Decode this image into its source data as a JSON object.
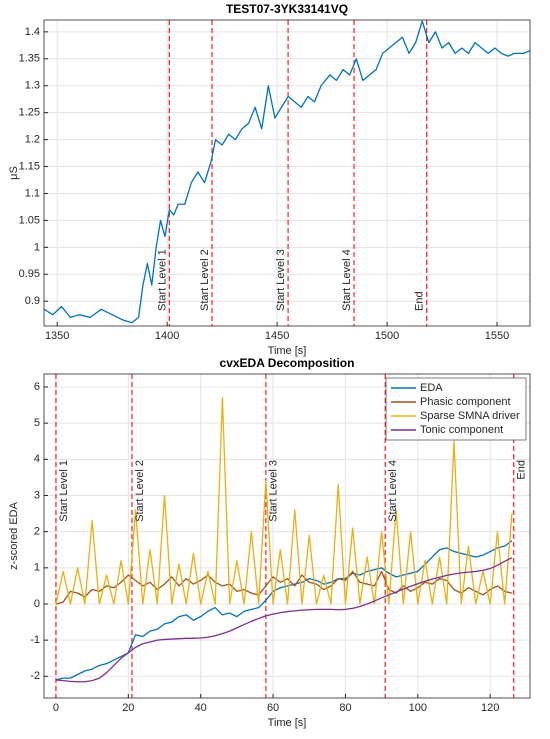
{
  "chart_data": [
    {
      "type": "line",
      "title": "TEST07-3YK33141VQ",
      "xlabel": "Time [s]",
      "ylabel": "μS",
      "xlim": [
        1344,
        1565
      ],
      "xticks": [
        1350,
        1400,
        1450,
        1500,
        1550
      ],
      "ylim": [
        0.854,
        1.422
      ],
      "yticks": [
        0.9,
        0.95,
        1,
        1.05,
        1.1,
        1.15,
        1.2,
        1.25,
        1.3,
        1.35,
        1.4
      ],
      "grid": true,
      "x": [
        1344,
        1348,
        1352,
        1356,
        1360,
        1365,
        1370,
        1375,
        1380,
        1384,
        1387,
        1389,
        1391,
        1393,
        1395,
        1397,
        1399,
        1401,
        1403,
        1405,
        1408,
        1411,
        1414,
        1417,
        1420,
        1422,
        1425,
        1428,
        1431,
        1434,
        1437,
        1440,
        1443,
        1446,
        1449,
        1452,
        1455,
        1458,
        1461,
        1464,
        1467,
        1470,
        1474,
        1477,
        1480,
        1483,
        1486,
        1489,
        1492,
        1495,
        1498,
        1501,
        1504,
        1507,
        1510,
        1513,
        1516,
        1519,
        1522,
        1525,
        1528,
        1531,
        1534,
        1537,
        1540,
        1543,
        1546,
        1549,
        1552,
        1555,
        1558,
        1562,
        1565
      ],
      "series": [
        {
          "color": "#0072bd",
          "values": [
            0.885,
            0.875,
            0.89,
            0.87,
            0.875,
            0.87,
            0.885,
            0.875,
            0.865,
            0.86,
            0.87,
            0.93,
            0.97,
            0.93,
            1.0,
            1.05,
            1.02,
            1.07,
            1.06,
            1.08,
            1.08,
            1.12,
            1.14,
            1.12,
            1.16,
            1.2,
            1.19,
            1.21,
            1.2,
            1.22,
            1.23,
            1.26,
            1.22,
            1.3,
            1.24,
            1.26,
            1.28,
            1.27,
            1.26,
            1.28,
            1.27,
            1.3,
            1.32,
            1.31,
            1.33,
            1.32,
            1.35,
            1.31,
            1.32,
            1.33,
            1.36,
            1.37,
            1.38,
            1.39,
            1.36,
            1.38,
            1.42,
            1.38,
            1.4,
            1.37,
            1.38,
            1.36,
            1.37,
            1.36,
            1.38,
            1.37,
            1.36,
            1.37,
            1.36,
            1.355,
            1.36,
            1.36,
            1.365
          ]
        }
      ],
      "vlines": [
        {
          "x": 1401,
          "label": "Start Level 1"
        },
        {
          "x": 1420.4,
          "label": "Start Level 2"
        },
        {
          "x": 1455,
          "label": "Start Level 3"
        },
        {
          "x": 1485,
          "label": "Start Level 4"
        },
        {
          "x": 1518,
          "label": "End"
        }
      ]
    },
    {
      "type": "line",
      "title": "cvxEDA Decomposition",
      "xlabel": "Time [s]",
      "ylabel": "z-scored EDA",
      "xlim": [
        -3.3,
        131
      ],
      "xticks": [
        0,
        20,
        40,
        60,
        80,
        100,
        120
      ],
      "ylim": [
        -2.6,
        6.36
      ],
      "yticks": [
        -2,
        -1,
        0,
        1,
        2,
        3,
        4,
        5,
        6
      ],
      "grid": true,
      "legend": "top-right",
      "x": [
        0,
        2,
        4,
        6,
        8,
        10,
        12,
        14,
        16,
        18,
        20,
        22,
        24,
        26,
        28,
        30,
        32,
        34,
        36,
        38,
        40,
        42,
        44,
        46,
        48,
        50,
        52,
        54,
        56,
        58,
        60,
        62,
        64,
        66,
        68,
        70,
        72,
        74,
        76,
        78,
        80,
        82,
        84,
        86,
        88,
        90,
        92,
        94,
        96,
        98,
        100,
        102,
        104,
        106,
        108,
        110,
        112,
        114,
        116,
        118,
        120,
        122,
        124,
        126
      ],
      "series": [
        {
          "name": "EDA",
          "color": "#0072bd",
          "values": [
            -2.1,
            -2.05,
            -2.05,
            -1.95,
            -1.85,
            -1.8,
            -1.7,
            -1.65,
            -1.55,
            -1.45,
            -1.35,
            -0.85,
            -0.9,
            -0.75,
            -0.7,
            -0.55,
            -0.5,
            -0.35,
            -0.3,
            -0.45,
            -0.35,
            -0.2,
            -0.1,
            -0.3,
            -0.25,
            -0.35,
            -0.2,
            -0.15,
            -0.1,
            0.1,
            0.35,
            0.45,
            0.5,
            0.55,
            0.6,
            0.7,
            0.65,
            0.55,
            0.6,
            0.7,
            0.7,
            0.85,
            0.8,
            0.9,
            0.95,
            1.0,
            0.85,
            0.75,
            0.8,
            0.85,
            0.9,
            1.1,
            1.3,
            1.5,
            1.55,
            1.45,
            1.4,
            1.35,
            1.3,
            1.35,
            1.45,
            1.55,
            1.6,
            1.75
          ]
        },
        {
          "name": "Phasic component",
          "color": "#a0521e",
          "values": [
            0.0,
            0.05,
            0.35,
            0.3,
            0.2,
            0.4,
            0.35,
            0.5,
            0.45,
            0.6,
            0.8,
            0.65,
            0.5,
            0.6,
            0.4,
            0.55,
            0.75,
            0.5,
            0.7,
            0.55,
            0.65,
            0.8,
            0.6,
            0.5,
            0.55,
            0.35,
            0.4,
            0.3,
            0.25,
            0.5,
            0.75,
            0.6,
            0.7,
            0.5,
            0.8,
            0.6,
            0.55,
            0.4,
            0.5,
            0.7,
            0.65,
            0.9,
            0.6,
            0.55,
            0.5,
            0.9,
            0.4,
            0.3,
            0.5,
            0.35,
            0.45,
            0.6,
            0.55,
            0.7,
            0.65,
            0.4,
            0.3,
            0.45,
            0.35,
            0.25,
            0.4,
            0.5,
            0.35,
            0.3
          ]
        },
        {
          "name": "Sparse SMNA driver",
          "color": "#e8b10f",
          "values": [
            0,
            0.9,
            0,
            1.0,
            0,
            2.3,
            0,
            0.8,
            0,
            1.2,
            0,
            2.6,
            0,
            1.5,
            0,
            3.0,
            0,
            1.1,
            0,
            1.4,
            0,
            0.9,
            0,
            5.7,
            0,
            1.2,
            0,
            2.0,
            0,
            3.4,
            0,
            1.5,
            0,
            2.6,
            0,
            1.9,
            0,
            0.8,
            0,
            3.3,
            0,
            2.1,
            0,
            1.3,
            0,
            2.0,
            0,
            2.6,
            0,
            2.0,
            0,
            1.2,
            0,
            1.3,
            0,
            4.5,
            0,
            1.6,
            0,
            0.9,
            0,
            2.0,
            0,
            2.5
          ]
        },
        {
          "name": "Tonic component",
          "color": "#7e2f8e",
          "values": [
            -2.1,
            -2.12,
            -2.14,
            -2.15,
            -2.15,
            -2.12,
            -2.05,
            -1.9,
            -1.7,
            -1.5,
            -1.35,
            -1.2,
            -1.1,
            -1.05,
            -1.0,
            -0.98,
            -0.97,
            -0.96,
            -0.95,
            -0.95,
            -0.94,
            -0.92,
            -0.88,
            -0.82,
            -0.75,
            -0.66,
            -0.57,
            -0.48,
            -0.4,
            -0.33,
            -0.28,
            -0.24,
            -0.21,
            -0.19,
            -0.17,
            -0.16,
            -0.15,
            -0.15,
            -0.15,
            -0.16,
            -0.15,
            -0.12,
            -0.07,
            0.0,
            0.08,
            0.17,
            0.25,
            0.33,
            0.41,
            0.49,
            0.56,
            0.63,
            0.69,
            0.74,
            0.79,
            0.83,
            0.86,
            0.88,
            0.9,
            0.93,
            0.98,
            1.07,
            1.18,
            1.28
          ]
        }
      ],
      "vlines": [
        {
          "x": 0,
          "label": "Start Level 1"
        },
        {
          "x": 21,
          "label": "Start Level 2"
        },
        {
          "x": 58,
          "label": "Start Level 3"
        },
        {
          "x": 91,
          "label": "Start Level 4"
        },
        {
          "x": 126.5,
          "label": "End"
        }
      ]
    }
  ]
}
